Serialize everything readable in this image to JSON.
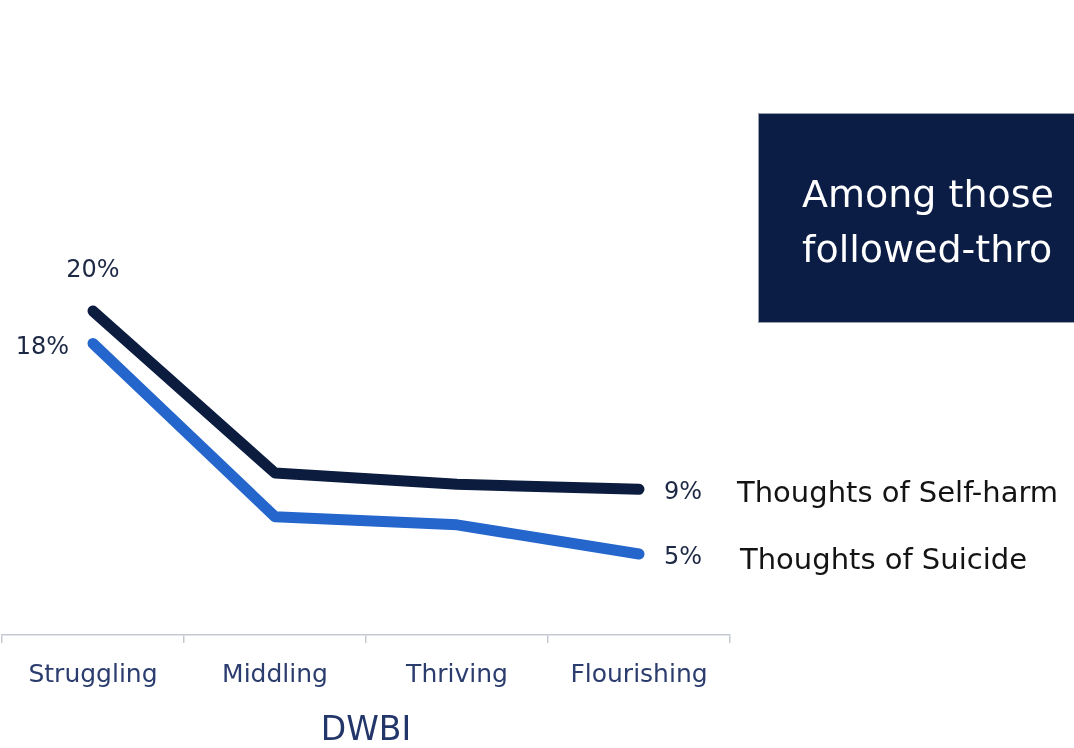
{
  "chart_data": {
    "type": "line",
    "categories": [
      "Struggling",
      "Middling",
      "Thriving",
      "Flourishing"
    ],
    "xlabel": "DWBI",
    "series": [
      {
        "name": "Thoughts of Self-harm",
        "color": "#0c1c3f",
        "values": [
          20,
          10,
          9.3,
          9
        ],
        "value_labels": [
          "20%",
          null,
          null,
          "9%"
        ]
      },
      {
        "name": "Thoughts of Suicide",
        "color": "#2566cc",
        "values": [
          18,
          7.3,
          6.8,
          5
        ],
        "value_labels": [
          "18%",
          null,
          null,
          "5%"
        ]
      }
    ],
    "annotations": [
      "Among those followed-thro"
    ],
    "marker": "none",
    "line_style": "solid",
    "tick_labels": "x"
  }
}
